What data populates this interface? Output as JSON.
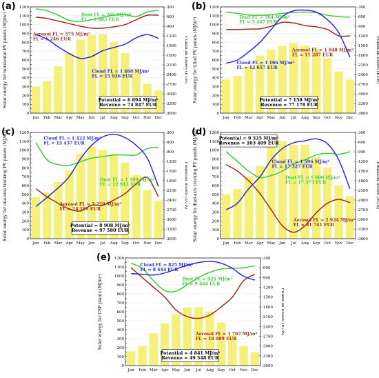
{
  "colors": {
    "bar": "#f5f07a",
    "dust": "#3fc93f",
    "aerosol": "#9a2a1f",
    "cloud": "#2a2ad0"
  },
  "left_ticks": [
    "0",
    "50",
    "100",
    "150",
    "200",
    "250",
    "300",
    "350",
    "400",
    "450",
    "500",
    "550",
    "600",
    "650",
    "700",
    "750",
    "800",
    "850",
    "900",
    "950",
    "1000",
    "1050",
    "1100",
    "1150",
    "1200"
  ],
  "right_ticks": [
    "-300",
    "-600",
    "-900",
    "-1200",
    "-1500",
    "-1800",
    "-2100",
    "-2400",
    "-2700",
    "-3000",
    "-3300",
    "-3600"
  ],
  "right_axis_label": "Financial losses (EUR)",
  "chart_data": [
    {
      "type": "bar",
      "label": "(a)",
      "ylabel": "Solar energy for horizontal PV panels (MJ/m²)",
      "y2label": "Financial losses (EUR)",
      "ylim": [
        0,
        1200
      ],
      "y2lim": [
        -3600,
        -300
      ],
      "categories": [
        "Jan",
        "Feb",
        "Mar",
        "Apr",
        "May",
        "Jun",
        "Jul",
        "Aug",
        "Sep",
        "Oct",
        "Nov",
        "Dec"
      ],
      "values": [
        300,
        360,
        530,
        680,
        830,
        880,
        890,
        800,
        680,
        500,
        330,
        260
      ],
      "series": [
        {
          "name": "Dust",
          "axis": "right",
          "values": [
            -360,
            -420,
            -560,
            -720,
            -750,
            -700,
            -620,
            -560,
            -540,
            -600,
            -460,
            -400
          ]
        },
        {
          "name": "Aerosol",
          "axis": "right",
          "values": [
            -620,
            -660,
            -740,
            -820,
            -900,
            -960,
            -960,
            -920,
            -850,
            -700,
            -560,
            -560
          ]
        },
        {
          "name": "Cloud",
          "axis": "right",
          "values": [
            -1160,
            -1300,
            -1540,
            -1750,
            -1900,
            -1840,
            -1660,
            -1560,
            -1460,
            -1260,
            -1160,
            -1280
          ]
        }
      ],
      "annotations": {
        "dust": [
          "Dust FL = 265 MJ/m²",
          "FL = 2 883 EUR"
        ],
        "aerosol": [
          "Aerosol FL = 575 MJ/m²",
          "FL = 6 246 EUR"
        ],
        "cloud": [
          "Cloud FL = 1 468 MJ/m²",
          "FL = 15 936 EUR"
        ],
        "box": [
          "Potential = 6 894 MJ/m²",
          "Revenue = 74 847 EUR"
        ]
      }
    },
    {
      "type": "bar",
      "label": "(b)",
      "ylabel": "Solar energy for tilted PV panels (MJ/m²)",
      "y2label": "Financial losses (EUR)",
      "ylim": [
        0,
        1200
      ],
      "y2lim": [
        -3600,
        -300
      ],
      "categories": [
        "Jan",
        "Feb",
        "Mar",
        "Apr",
        "May",
        "Jun",
        "Jul",
        "Aug",
        "Sep",
        "Oct",
        "Nov",
        "Dec"
      ],
      "values": [
        380,
        420,
        530,
        650,
        720,
        760,
        790,
        760,
        720,
        620,
        470,
        380
      ],
      "series": [
        {
          "name": "Dust",
          "axis": "right",
          "values": [
            -470,
            -500,
            -550,
            -560,
            -540,
            -500,
            -470,
            -460,
            -480,
            -560,
            -600,
            -620
          ]
        },
        {
          "name": "Aerosol",
          "axis": "right",
          "values": [
            -1000,
            -1000,
            -990,
            -980,
            -900,
            -780,
            -800,
            -880,
            -920,
            -1000,
            -1200,
            -1200
          ]
        },
        {
          "name": "Cloud",
          "axis": "right",
          "values": [
            -2050,
            -1950,
            -1700,
            -1400,
            -1000,
            -600,
            -420,
            -400,
            -460,
            -700,
            -1100,
            -1860
          ]
        }
      ],
      "annotations": {
        "dust": [
          "Dust FL = 504 MJ/m²",
          "FL = 5 467 EUR"
        ],
        "aerosol": [
          "Aerosol FL = 1 040 MJ/m²",
          "FL = 11 287 EUR"
        ],
        "cloud": [
          "Cloud FL = 1 166 MJ/m²",
          "FL = 12 657 EUR"
        ],
        "box": [
          "Potential = 7 158 MJ/m²",
          "Revenue = 77 178 EUR"
        ]
      }
    },
    {
      "type": "bar",
      "label": "(c)",
      "ylabel": "Solar energy for one-axis tracking PV panels (MJ/m²)",
      "y2label": "Financial losses (EUR)",
      "ylim": [
        0,
        1200
      ],
      "y2lim": [
        -3600,
        -300
      ],
      "categories": [
        "Jan",
        "Feb",
        "Mar",
        "Apr",
        "May",
        "Jun",
        "Jul",
        "Aug",
        "Sep",
        "Oct",
        "Nov",
        "Dec"
      ],
      "values": [
        470,
        520,
        640,
        770,
        960,
        1040,
        1000,
        960,
        860,
        720,
        550,
        430
      ],
      "series": [
        {
          "name": "Dust",
          "axis": "right",
          "values": [
            -620,
            -1150,
            -1300,
            -1320,
            -1210,
            -1100,
            -1050,
            -1000,
            -1000,
            -1000,
            -800,
            -760
          ]
        },
        {
          "name": "Aerosol",
          "axis": "right",
          "values": [
            -2050,
            -2300,
            -2500,
            -2680,
            -2740,
            -2560,
            -2560,
            -2400,
            -2200,
            -1900,
            -1700,
            -2300
          ]
        },
        {
          "name": "Cloud",
          "axis": "right",
          "values": [
            -2600,
            -2320,
            -2020,
            -1670,
            -1120,
            -700,
            -440,
            -360,
            -460,
            -700,
            -1100,
            -1980
          ]
        }
      ],
      "annotations": {
        "dust": [
          "Dust FL = 1 189 MJ/m²",
          "FL = 12 913 EUR"
        ],
        "aerosol": [
          "Aerosol FL = 2 229 MJ/m²",
          "FL = 24 199 EUR"
        ],
        "cloud": [
          "Cloud FL = 1 422 MJ/m²",
          "FL = 15 437 EUR"
        ],
        "box": [
          "Potential = 8 908 MJ/m²",
          "Revenue = 97 580 EUR"
        ]
      }
    },
    {
      "type": "bar",
      "label": "(d)",
      "ylabel": "Solar energy for dual-axis tracking PV panels (MJ/m²)",
      "y2label": "Financial losses (EUR)",
      "ylim": [
        0,
        1200
      ],
      "y2lim": [
        -3600,
        -300
      ],
      "categories": [
        "Jan",
        "Feb",
        "Mar",
        "Apr",
        "May",
        "Jun",
        "Jul",
        "Aug",
        "Sep",
        "Oct",
        "Nov",
        "Dec"
      ],
      "values": [
        500,
        560,
        700,
        820,
        1060,
        1100,
        1060,
        1060,
        920,
        800,
        600,
        480
      ],
      "series": [
        {
          "name": "Dust",
          "axis": "right",
          "values": [
            -900,
            -1200,
            -1500,
            -1700,
            -1640,
            -1500,
            -1280,
            -1150,
            -1000,
            -950,
            -980,
            -900
          ]
        },
        {
          "name": "Aerosol",
          "axis": "right",
          "values": [
            -1300,
            -1500,
            -1800,
            -2200,
            -2700,
            -3200,
            -3400,
            -3200,
            -2800,
            -2500,
            -2380,
            -2480
          ]
        },
        {
          "name": "Cloud",
          "axis": "right",
          "values": [
            -2700,
            -2500,
            -2050,
            -1680,
            -1150,
            -800,
            -620,
            -560,
            -500,
            -650,
            -1150,
            -2050
          ]
        }
      ],
      "annotations": {
        "top_box": [
          "Potential = 9 525 MJ/m²",
          "Revenue = 103 409 EUR"
        ],
        "dust": [
          "Dust FL = 1 600 MJ/m²",
          "FL = 17 373 EUR"
        ],
        "aerosol": [
          "Aerosol FL = 2 924 MJ/m²",
          "FL = 31 741 EUR"
        ],
        "cloud": [
          "Cloud FL = 1 596 MJ/m²",
          "FL = 17 327 EUR"
        ]
      }
    },
    {
      "type": "bar",
      "label": "(e)",
      "ylabel": "Solar energy for CSP plants (MJ/m²)",
      "y2label": "Financial losses (EUR)",
      "ylim": [
        0,
        1200
      ],
      "y2lim": [
        -3600,
        -300
      ],
      "categories": [
        "Jan",
        "Feb",
        "Mar",
        "Apr",
        "May",
        "Jun",
        "Jul",
        "Aug",
        "Sep",
        "Oct",
        "Nov",
        "Dec"
      ],
      "values": [
        160,
        220,
        360,
        470,
        570,
        650,
        650,
        600,
        480,
        340,
        220,
        150
      ],
      "series": [
        {
          "name": "Dust",
          "axis": "right",
          "values": [
            -460,
            -620,
            -1000,
            -1300,
            -1320,
            -1120,
            -900,
            -740,
            -640,
            -620,
            -600,
            -540
          ]
        },
        {
          "name": "Aerosol",
          "axis": "right",
          "values": [
            -600,
            -900,
            -1200,
            -1500,
            -1900,
            -2100,
            -2150,
            -2050,
            -1800,
            -1500,
            -1000,
            -800
          ]
        },
        {
          "name": "Cloud",
          "axis": "right",
          "values": [
            -780,
            -800,
            -820,
            -760,
            -640,
            -520,
            -440,
            -400,
            -460,
            -620,
            -860,
            -980
          ]
        }
      ],
      "annotations": {
        "cloud": [
          "Cloud FL = 825 MJ/m²",
          "FL = 8 444 EUR"
        ],
        "dust": [
          "Dust FL = 925 MJ/m²",
          "FL = 9 464 EUR"
        ],
        "aerosol": [
          "Aerosol FL = 1 767 MJ/m²",
          "FL = 18 089 EUR"
        ],
        "box": [
          "Potential = 4 841 MJ/m²",
          "Revenue = 49 548 EUR"
        ]
      }
    }
  ]
}
